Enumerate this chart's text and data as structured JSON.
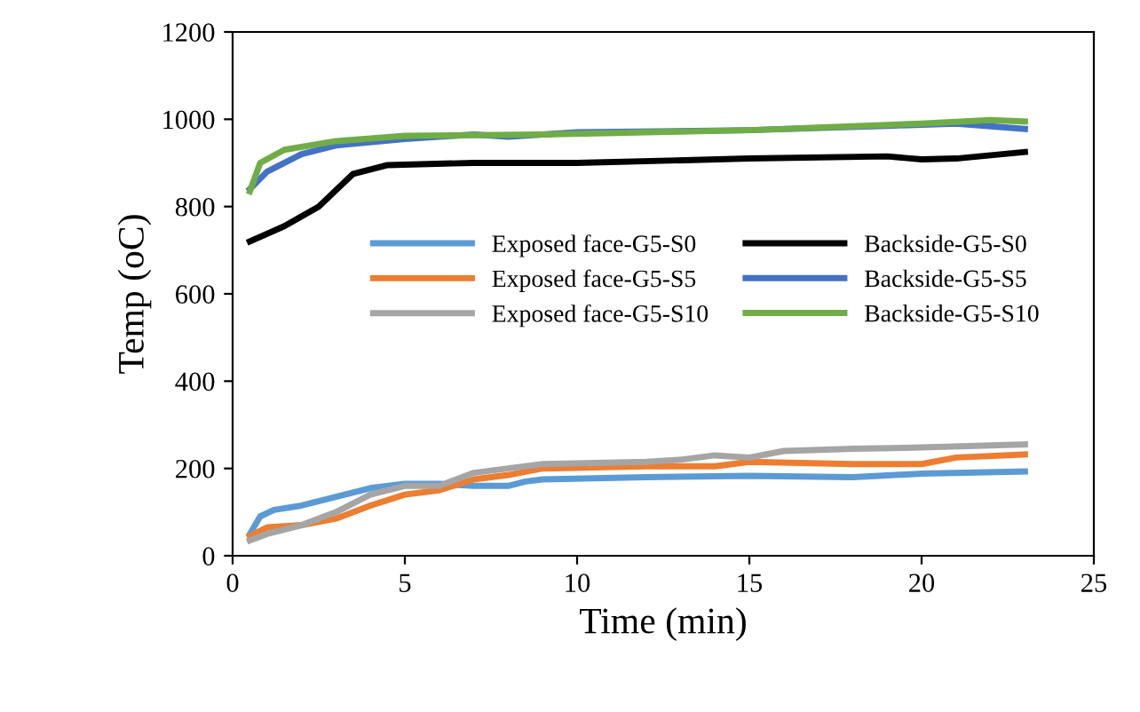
{
  "chart_data": {
    "type": "line",
    "xlabel": "Time (min)",
    "ylabel": "Temp (oC)",
    "xlim": [
      0,
      25
    ],
    "xticks": [
      0,
      5,
      10,
      15,
      20,
      25
    ],
    "ylim": [
      0,
      1200
    ],
    "yticks": [
      0,
      200,
      400,
      600,
      800,
      1000,
      1200
    ],
    "grid": false,
    "legend": "center",
    "marker": "none",
    "line_style": "solid",
    "series": [
      {
        "name": "Exposed face-G5-S0",
        "color": "#5b9bd5",
        "x": [
          0.5,
          0.8,
          1.2,
          2,
          3,
          4,
          5,
          6,
          7,
          8,
          8.5,
          9,
          12,
          15,
          18,
          20,
          23
        ],
        "values": [
          50,
          90,
          105,
          115,
          135,
          155,
          165,
          165,
          160,
          160,
          170,
          175,
          180,
          183,
          180,
          188,
          193
        ]
      },
      {
        "name": "Exposed face-G5-S5",
        "color": "#ed7d31",
        "x": [
          0.5,
          1,
          2,
          3,
          4,
          5,
          6,
          7,
          8,
          9,
          12,
          14,
          15,
          18,
          20,
          21,
          23
        ],
        "values": [
          45,
          65,
          70,
          85,
          115,
          140,
          150,
          175,
          185,
          200,
          205,
          205,
          215,
          210,
          210,
          225,
          232
        ]
      },
      {
        "name": "Exposed face-G5-S10",
        "color": "#a5a5a5",
        "x": [
          0.5,
          1,
          2,
          3,
          4,
          5,
          6,
          7,
          8,
          9,
          12,
          13,
          14,
          15,
          16,
          18,
          20,
          23
        ],
        "values": [
          35,
          50,
          70,
          100,
          140,
          160,
          160,
          190,
          200,
          210,
          215,
          220,
          230,
          225,
          240,
          245,
          248,
          255
        ]
      },
      {
        "name": "Backside-G5-S0",
        "color": "#000000",
        "x": [
          0.5,
          1.5,
          2.5,
          3.5,
          4.5,
          7,
          10,
          15,
          19,
          20,
          21,
          23
        ],
        "values": [
          720,
          755,
          800,
          875,
          895,
          900,
          900,
          910,
          915,
          908,
          910,
          925
        ]
      },
      {
        "name": "Backside-G5-S5",
        "color": "#4472c4",
        "x": [
          0.5,
          1,
          2,
          3,
          5,
          7,
          8,
          10,
          15,
          19,
          21,
          23
        ],
        "values": [
          840,
          880,
          920,
          940,
          955,
          965,
          960,
          970,
          975,
          985,
          990,
          978
        ]
      },
      {
        "name": "Backside-G5-S10",
        "color": "#70ad47",
        "x": [
          0.5,
          0.8,
          1.5,
          3,
          5,
          9,
          15,
          20,
          22,
          23
        ],
        "values": [
          835,
          900,
          930,
          950,
          962,
          965,
          975,
          990,
          998,
          995
        ]
      }
    ]
  }
}
